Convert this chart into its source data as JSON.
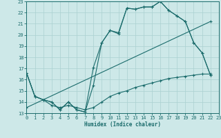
{
  "xlabel": "Humidex (Indice chaleur)",
  "bg_color": "#cde8e8",
  "grid_color": "#aad0d0",
  "line_color": "#1a6b6b",
  "xlim": [
    0,
    23
  ],
  "ylim": [
    13,
    23
  ],
  "yticks": [
    13,
    14,
    15,
    16,
    17,
    18,
    19,
    20,
    21,
    22,
    23
  ],
  "xticks": [
    0,
    1,
    2,
    3,
    4,
    5,
    6,
    7,
    8,
    9,
    10,
    11,
    12,
    13,
    14,
    15,
    16,
    17,
    18,
    19,
    20,
    21,
    22,
    23
  ],
  "curve1_x": [
    0,
    1,
    2,
    3,
    4,
    5,
    6,
    7,
    8,
    9,
    10,
    11,
    12,
    13,
    14,
    15,
    16,
    17,
    18,
    19,
    20,
    21,
    22
  ],
  "curve1_y": [
    16.6,
    14.5,
    14.2,
    14.0,
    13.3,
    14.0,
    13.3,
    13.1,
    15.5,
    19.3,
    20.4,
    20.1,
    22.4,
    22.3,
    22.5,
    22.5,
    23.0,
    22.2,
    21.7,
    21.2,
    19.3,
    18.4,
    16.4
  ],
  "curve2_x": [
    0,
    1,
    2,
    3,
    4,
    5,
    6,
    7,
    8,
    9,
    10,
    11,
    12,
    13,
    14,
    15,
    16,
    17,
    18,
    19,
    20,
    21,
    22
  ],
  "curve2_y": [
    16.6,
    14.5,
    14.2,
    14.0,
    13.3,
    14.0,
    13.3,
    13.1,
    17.1,
    19.3,
    20.4,
    20.2,
    22.4,
    22.3,
    22.5,
    22.5,
    23.0,
    22.2,
    21.7,
    21.2,
    19.3,
    18.4,
    16.4
  ],
  "curve3_x": [
    0,
    1,
    2,
    3,
    4,
    5,
    6,
    7,
    8,
    9,
    10,
    11,
    12,
    13,
    14,
    15,
    16,
    17,
    18,
    19,
    20,
    21,
    22
  ],
  "curve3_y": [
    16.6,
    14.5,
    14.2,
    13.7,
    13.5,
    13.7,
    13.5,
    13.3,
    13.5,
    14.0,
    14.5,
    14.8,
    15.0,
    15.3,
    15.5,
    15.7,
    15.9,
    16.1,
    16.2,
    16.3,
    16.4,
    16.5,
    16.5
  ],
  "curve4_x": [
    0,
    22
  ],
  "curve4_y": [
    13.5,
    21.2
  ]
}
